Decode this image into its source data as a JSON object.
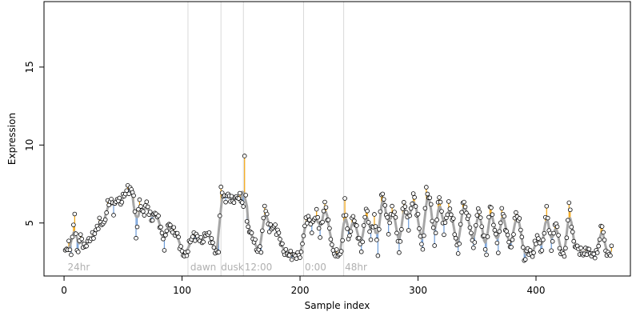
{
  "chart_data": {
    "type": "scatter",
    "xlabel": "Sample index",
    "ylabel": "Expression",
    "xlim": [
      -17,
      480
    ],
    "ylim": [
      1.6,
      19.2
    ],
    "x_ticks": [
      "0",
      "100",
      "200",
      "300",
      "400"
    ],
    "y_ticks": [
      "5",
      "10",
      "15"
    ],
    "colors": {
      "smooth_line": "#a6a6a6",
      "above_segment": "#f2a20a",
      "below_segment": "#6a9ad8",
      "point_fill": "#ffffff",
      "point_stroke": "#000000",
      "divider": "#d9d9d9",
      "annotation": "#b0b0b0"
    },
    "dividers": [
      105,
      133,
      152,
      203,
      237
    ],
    "annotations": [
      {
        "x": 3,
        "label": "24hr"
      },
      {
        "x": 107,
        "label": "dawn"
      },
      {
        "x": 133,
        "label": "dusk"
      },
      {
        "x": 153,
        "label": "12:00"
      },
      {
        "x": 204,
        "label": "0:00"
      },
      {
        "x": 238,
        "label": "48hr"
      }
    ],
    "key_points": [
      [
        1,
        3.2
      ],
      [
        4,
        3.6
      ],
      [
        6,
        3.1
      ],
      [
        9,
        5.7
      ],
      [
        11,
        3.0
      ],
      [
        14,
        4.2
      ],
      [
        17,
        3.4
      ],
      [
        21,
        3.9
      ],
      [
        26,
        4.3
      ],
      [
        30,
        5.1
      ],
      [
        34,
        4.9
      ],
      [
        37,
        6.2
      ],
      [
        40,
        6.5
      ],
      [
        42,
        5.8
      ],
      [
        45,
        6.6
      ],
      [
        48,
        6.3
      ],
      [
        51,
        6.8
      ],
      [
        54,
        7.2
      ],
      [
        57,
        7.1
      ],
      [
        59,
        6.9
      ],
      [
        61,
        4.1
      ],
      [
        64,
        6.5
      ],
      [
        67,
        5.5
      ],
      [
        70,
        6.3
      ],
      [
        74,
        5.2
      ],
      [
        78,
        5.7
      ],
      [
        82,
        4.7
      ],
      [
        85,
        3.5
      ],
      [
        88,
        5.0
      ],
      [
        92,
        4.5
      ],
      [
        96,
        4.3
      ],
      [
        99,
        3.3
      ],
      [
        102,
        2.9
      ],
      [
        104,
        3.0
      ],
      [
        107,
        3.9
      ],
      [
        110,
        4.2
      ],
      [
        113,
        4.1
      ],
      [
        117,
        3.8
      ],
      [
        121,
        4.4
      ],
      [
        125,
        3.9
      ],
      [
        129,
        3.0
      ],
      [
        131,
        3.3
      ],
      [
        133,
        7.3
      ],
      [
        136,
        6.5
      ],
      [
        139,
        6.8
      ],
      [
        143,
        6.4
      ],
      [
        147,
        6.7
      ],
      [
        150,
        6.6
      ],
      [
        152,
        6.0
      ],
      [
        153,
        9.2
      ],
      [
        155,
        4.9
      ],
      [
        158,
        4.4
      ],
      [
        161,
        3.9
      ],
      [
        164,
        3.2
      ],
      [
        167,
        3.4
      ],
      [
        170,
        6.2
      ],
      [
        174,
        4.6
      ],
      [
        178,
        4.8
      ],
      [
        182,
        4.3
      ],
      [
        186,
        3.2
      ],
      [
        190,
        3.0
      ],
      [
        194,
        2.9
      ],
      [
        198,
        2.9
      ],
      [
        201,
        3.0
      ],
      [
        204,
        4.9
      ],
      [
        207,
        5.4
      ],
      [
        210,
        4.6
      ],
      [
        214,
        5.8
      ],
      [
        217,
        4.2
      ],
      [
        221,
        6.3
      ],
      [
        225,
        4.6
      ],
      [
        228,
        3.1
      ],
      [
        232,
        3.0
      ],
      [
        235,
        3.0
      ],
      [
        238,
        6.5
      ],
      [
        241,
        3.8
      ],
      [
        245,
        5.5
      ],
      [
        249,
        4.3
      ],
      [
        252,
        3.2
      ],
      [
        256,
        6.1
      ],
      [
        260,
        4.0
      ],
      [
        263,
        5.5
      ],
      [
        266,
        3.1
      ],
      [
        269,
        7.0
      ],
      [
        272,
        6.2
      ],
      [
        275,
        4.5
      ],
      [
        278,
        6.0
      ],
      [
        281,
        5.3
      ],
      [
        284,
        3.0
      ],
      [
        288,
        6.5
      ],
      [
        292,
        4.8
      ],
      [
        296,
        6.9
      ],
      [
        300,
        5.3
      ],
      [
        304,
        3.1
      ],
      [
        307,
        7.2
      ],
      [
        311,
        6.2
      ],
      [
        314,
        3.6
      ],
      [
        318,
        6.9
      ],
      [
        322,
        4.4
      ],
      [
        326,
        6.2
      ],
      [
        330,
        5.0
      ],
      [
        334,
        3.0
      ],
      [
        338,
        6.5
      ],
      [
        341,
        5.7
      ],
      [
        344,
        4.9
      ],
      [
        347,
        3.3
      ],
      [
        351,
        6.1
      ],
      [
        354,
        4.8
      ],
      [
        358,
        3.0
      ],
      [
        361,
        6.3
      ],
      [
        364,
        5.0
      ],
      [
        368,
        3.3
      ],
      [
        371,
        6.0
      ],
      [
        375,
        4.4
      ],
      [
        379,
        3.3
      ],
      [
        383,
        5.7
      ],
      [
        387,
        4.8
      ],
      [
        390,
        2.6
      ],
      [
        393,
        3.3
      ],
      [
        397,
        2.9
      ],
      [
        401,
        4.2
      ],
      [
        405,
        3.1
      ],
      [
        409,
        6.0
      ],
      [
        413,
        3.4
      ],
      [
        417,
        5.2
      ],
      [
        421,
        3.0
      ],
      [
        425,
        3.1
      ],
      [
        428,
        6.3
      ],
      [
        432,
        3.7
      ],
      [
        436,
        3.3
      ],
      [
        440,
        3.0
      ],
      [
        444,
        3.3
      ],
      [
        448,
        2.9
      ],
      [
        452,
        3.1
      ],
      [
        456,
        5.0
      ],
      [
        459,
        3.2
      ],
      [
        462,
        2.9
      ],
      [
        464,
        3.4
      ]
    ]
  }
}
